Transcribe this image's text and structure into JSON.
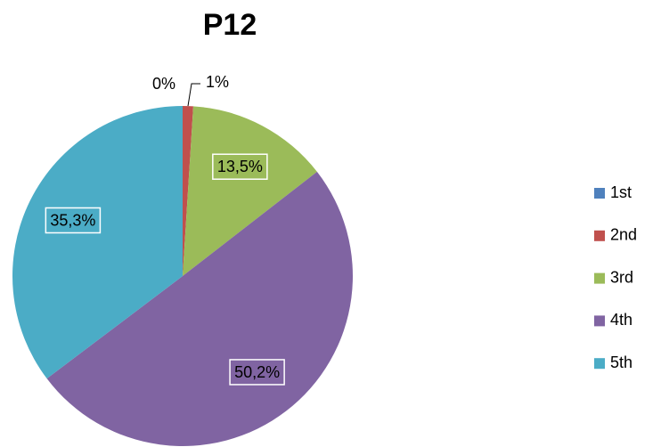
{
  "chart_data": {
    "type": "pie",
    "title": "P12",
    "categories": [
      "1st",
      "2nd",
      "3rd",
      "4th",
      "5th"
    ],
    "values": [
      0,
      1,
      13.5,
      50.2,
      35.3
    ],
    "value_labels": [
      "0%",
      "1%",
      "13,5%",
      "50,2%",
      "35,3%"
    ],
    "colors": [
      "#4f81bd",
      "#c0504d",
      "#9bbb59",
      "#8064a2",
      "#4bacc6"
    ],
    "legend": "right"
  }
}
